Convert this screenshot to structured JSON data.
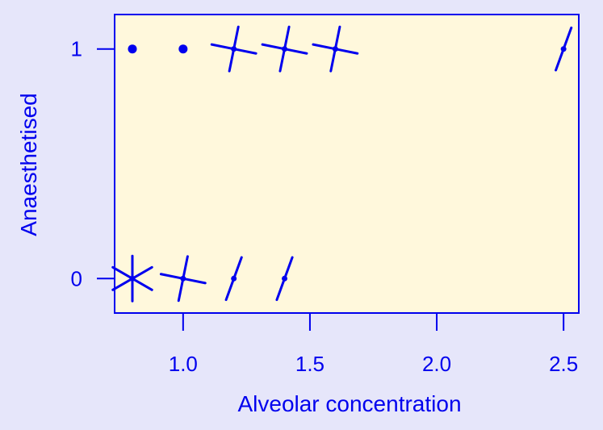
{
  "chart_data": {
    "type": "scatter",
    "variant": "sunflower",
    "xlabel": "Alveolar concentration",
    "ylabel": "Anaesthetised",
    "xlim": [
      0.73,
      2.56
    ],
    "ylim": [
      -0.15,
      1.15
    ],
    "x_ticks": [
      {
        "value": 1.0,
        "label": "1.0"
      },
      {
        "value": 1.5,
        "label": "1.5"
      },
      {
        "value": 2.0,
        "label": "2.0"
      },
      {
        "value": 2.5,
        "label": "2.5"
      }
    ],
    "y_ticks": [
      {
        "value": 0,
        "label": "0"
      },
      {
        "value": 1,
        "label": "1"
      }
    ],
    "points": [
      {
        "x": 0.8,
        "y": 1,
        "count": 1
      },
      {
        "x": 1.0,
        "y": 1,
        "count": 1
      },
      {
        "x": 1.2,
        "y": 1,
        "count": 4
      },
      {
        "x": 1.4,
        "y": 1,
        "count": 4
      },
      {
        "x": 1.6,
        "y": 1,
        "count": 4
      },
      {
        "x": 2.5,
        "y": 1,
        "count": 2
      },
      {
        "x": 0.8,
        "y": 0,
        "count": 6
      },
      {
        "x": 1.0,
        "y": 0,
        "count": 4
      },
      {
        "x": 1.2,
        "y": 0,
        "count": 2
      },
      {
        "x": 1.4,
        "y": 0,
        "count": 2
      }
    ],
    "colors": {
      "foreground": "#0000ee",
      "plot_background": "#fff8dc",
      "page_background": "#e6e6fa"
    }
  }
}
